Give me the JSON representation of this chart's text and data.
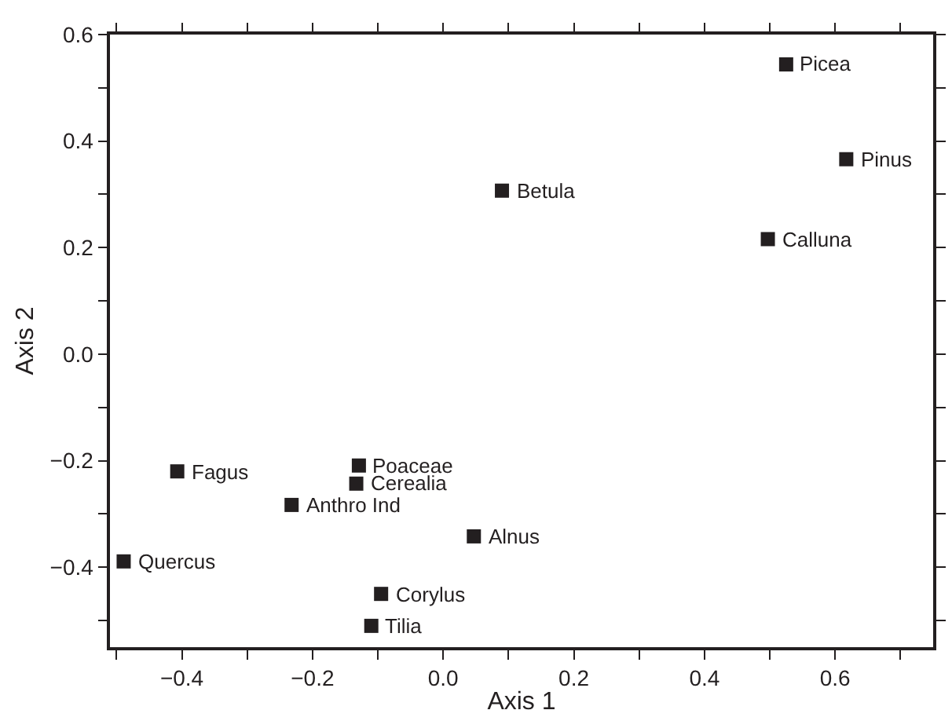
{
  "chart_data": {
    "type": "scatter",
    "xlabel": "Axis 1",
    "ylabel": "Axis 2",
    "marker": "square",
    "grid": false,
    "series": [
      {
        "color": "#231f20",
        "x": [
          0.525,
          0.617,
          0.09,
          0.497,
          -0.407,
          -0.129,
          -0.133,
          -0.232,
          0.047,
          -0.489,
          -0.095,
          -0.11
        ],
        "values": [
          0.544,
          0.366,
          0.307,
          0.216,
          -0.22,
          -0.209,
          -0.243,
          -0.283,
          -0.342,
          -0.389,
          -0.45,
          -0.51
        ]
      }
    ],
    "annotations": [
      {
        "text": "Picea",
        "x": 0.525,
        "y": 0.544
      },
      {
        "text": "Pinus",
        "x": 0.617,
        "y": 0.366
      },
      {
        "text": "Betula",
        "x": 0.09,
        "y": 0.307
      },
      {
        "text": "Calluna",
        "x": 0.497,
        "y": 0.216
      },
      {
        "text": "Fagus",
        "x": -0.407,
        "y": -0.22
      },
      {
        "text": "Poaceae",
        "x": -0.129,
        "y": -0.209
      },
      {
        "text": "Cerealia",
        "x": -0.133,
        "y": -0.243
      },
      {
        "text": "Anthro Ind",
        "x": -0.232,
        "y": -0.283
      },
      {
        "text": "Alnus",
        "x": 0.047,
        "y": -0.342
      },
      {
        "text": "Quercus",
        "x": -0.489,
        "y": -0.389
      },
      {
        "text": "Corylus",
        "x": -0.095,
        "y": -0.45
      },
      {
        "text": "Tilia",
        "x": -0.11,
        "y": -0.51
      }
    ],
    "xlim": [
      -0.51,
      0.75
    ],
    "xticks": [
      {
        "value": -0.5,
        "label": null
      },
      {
        "value": -0.4,
        "label": "−0.4"
      },
      {
        "value": -0.3,
        "label": null
      },
      {
        "value": -0.2,
        "label": "−0.2"
      },
      {
        "value": -0.1,
        "label": null
      },
      {
        "value": 0.0,
        "label": "0.0"
      },
      {
        "value": 0.1,
        "label": null
      },
      {
        "value": 0.2,
        "label": "0.2"
      },
      {
        "value": 0.3,
        "label": null
      },
      {
        "value": 0.4,
        "label": "0.4"
      },
      {
        "value": 0.5,
        "label": null
      },
      {
        "value": 0.6,
        "label": "0.6"
      },
      {
        "value": 0.7,
        "label": null
      }
    ],
    "ylim": [
      -0.55,
      0.6
    ],
    "yticks": [
      {
        "value": -0.5,
        "label": null
      },
      {
        "value": -0.4,
        "label": "−0.4"
      },
      {
        "value": -0.3,
        "label": null
      },
      {
        "value": -0.2,
        "label": "−0.2"
      },
      {
        "value": -0.1,
        "label": null
      },
      {
        "value": 0.0,
        "label": "0.0"
      },
      {
        "value": 0.1,
        "label": null
      },
      {
        "value": 0.2,
        "label": "0.2"
      },
      {
        "value": 0.3,
        "label": null
      },
      {
        "value": 0.4,
        "label": "0.4"
      },
      {
        "value": 0.5,
        "label": null
      },
      {
        "value": 0.6,
        "label": "0.6"
      }
    ]
  }
}
